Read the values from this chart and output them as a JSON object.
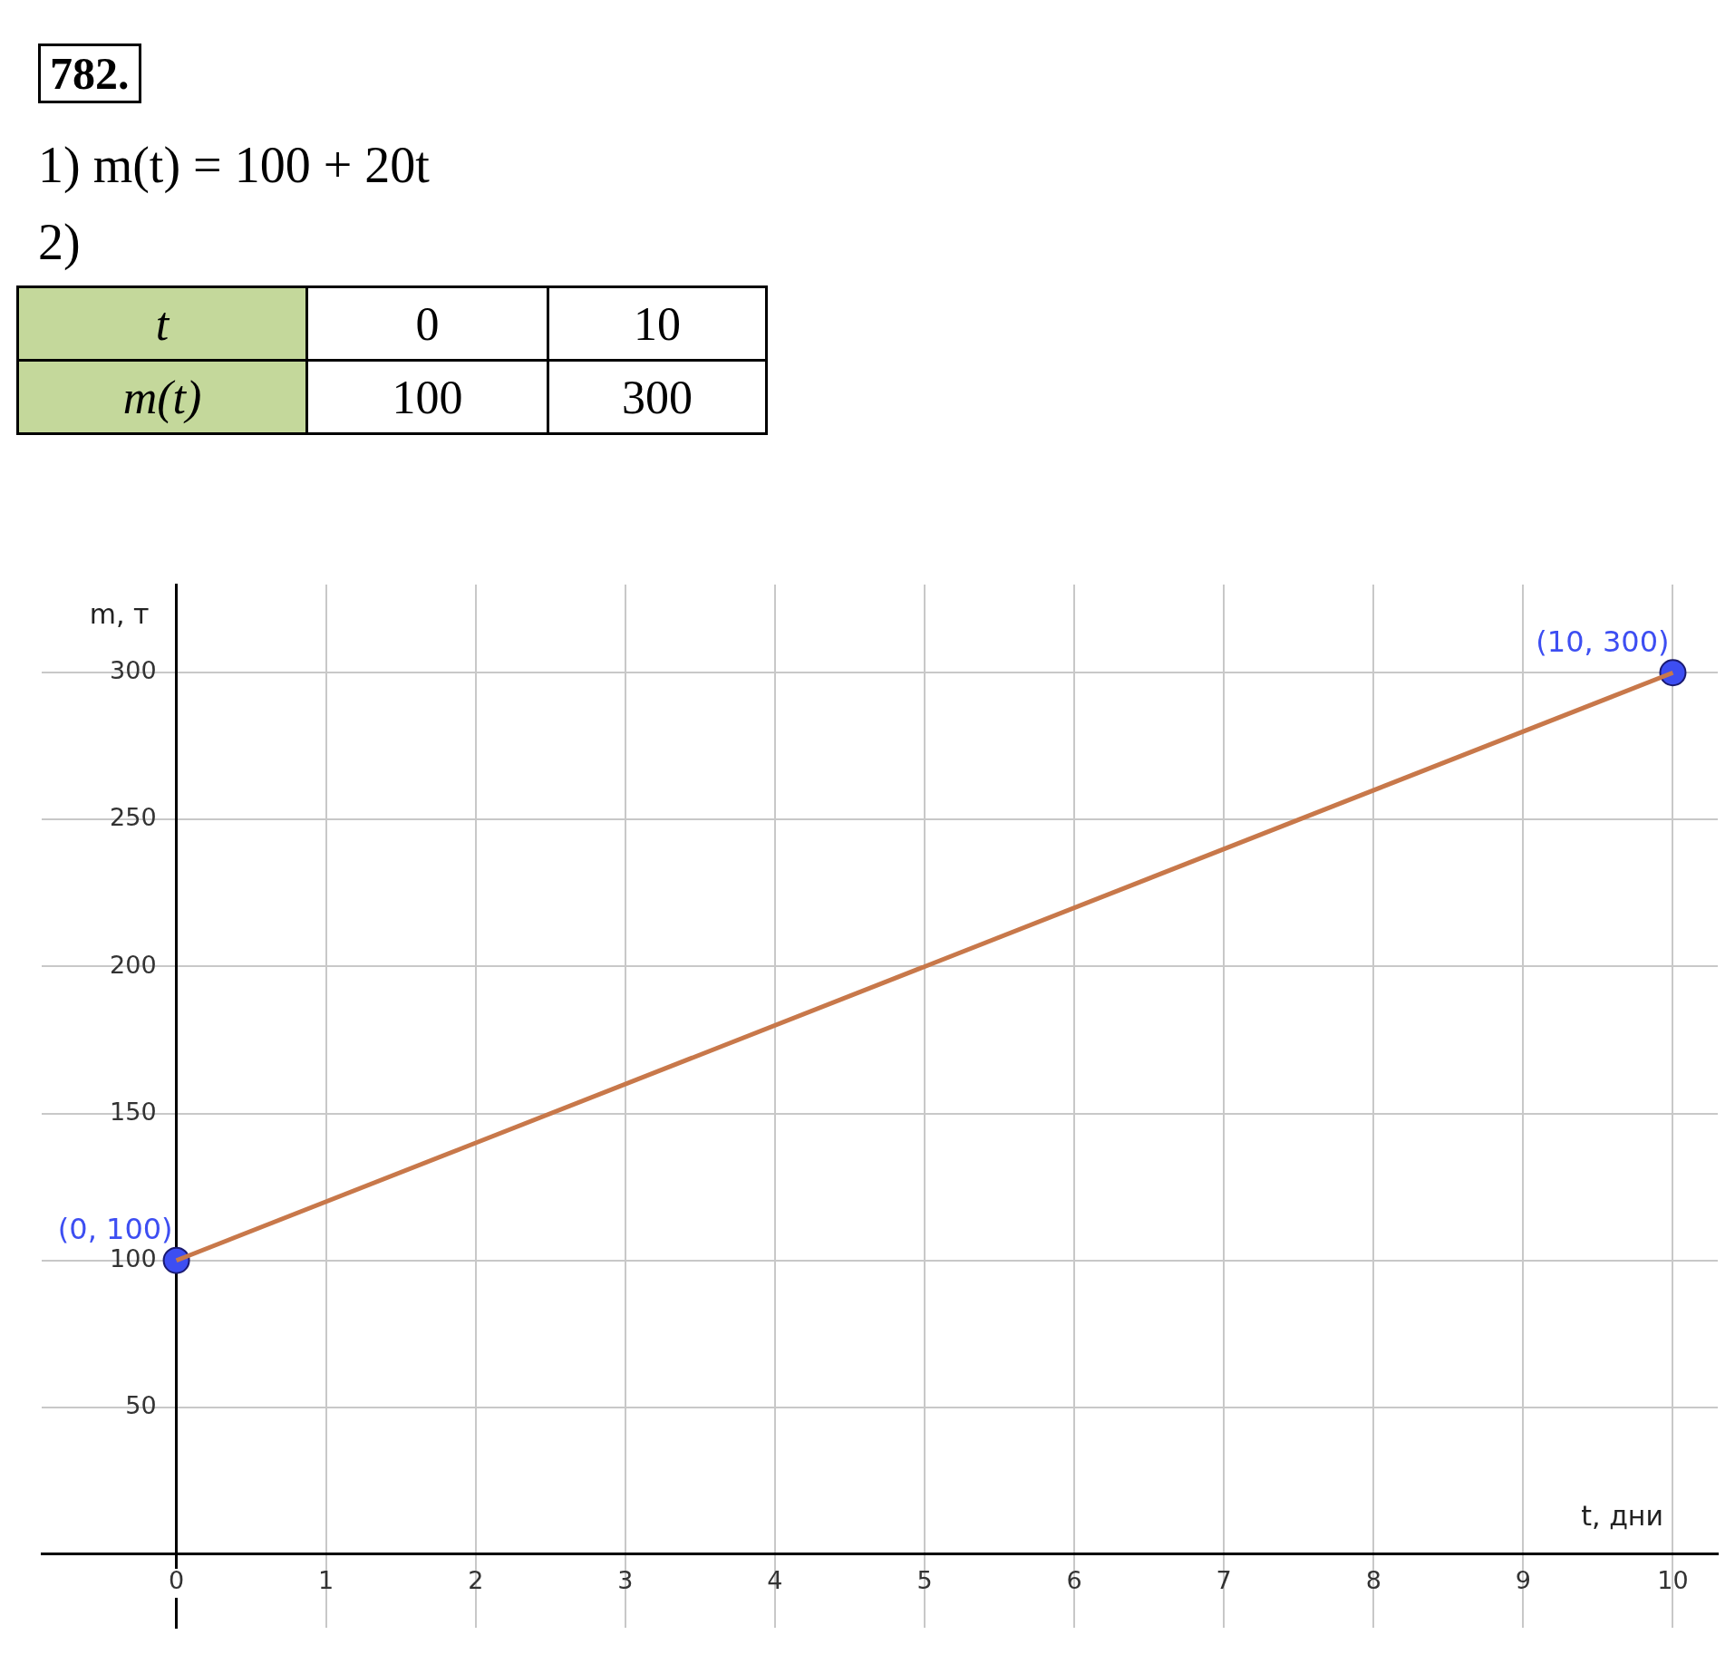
{
  "chart_data": {
    "type": "line",
    "title": "782.",
    "xlabel": "t, дни",
    "ylabel": "m, т",
    "annotations": [
      "1) m(t) = 100 + 20t",
      "2)",
      "t",
      "m(t)",
      "0",
      "10",
      "100",
      "300",
      {
        "text": "(0, 100)",
        "x": 0,
        "y": 100
      },
      {
        "text": "(10, 300)",
        "x": 10,
        "y": 300
      }
    ],
    "series": [
      {
        "color": "#c8784a",
        "values": [
          100,
          300
        ],
        "marker": "none",
        "line_style": "solid"
      },
      {
        "type": "scatter",
        "color": "#3d4ef2",
        "values": [
          100,
          300
        ],
        "marker": "circle"
      }
    ],
    "x": [
      0,
      10
    ],
    "xlim": [
      -0.9,
      10.3
    ],
    "ylim": [
      -25,
      330
    ],
    "xticks": [
      0,
      1,
      2,
      3,
      4,
      5,
      6,
      7,
      8,
      9,
      10
    ],
    "yticks": [
      {
        "value": 0,
        "label": null
      },
      50,
      {
        "value": 100,
        "label": "100"
      },
      150,
      200,
      250,
      300
    ],
    "grid": true,
    "legend": false
  }
}
